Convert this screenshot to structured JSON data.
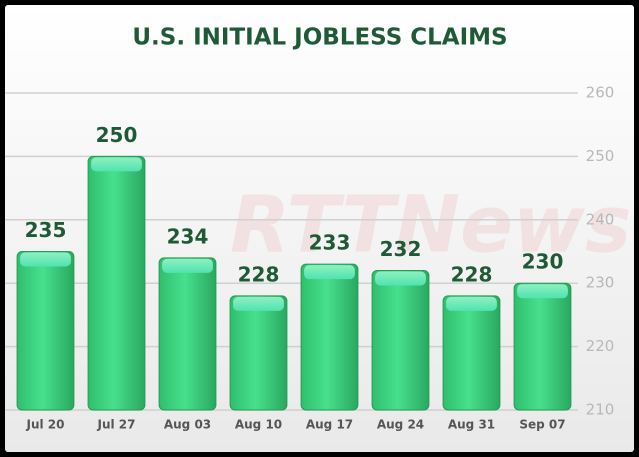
{
  "chart_data": {
    "type": "bar",
    "title": "U.S. INITIAL JOBLESS CLAIMS",
    "watermark": "RTTNews",
    "categories": [
      "Jul 20",
      "Jul 27",
      "Aug 03",
      "Aug 10",
      "Aug 17",
      "Aug 24",
      "Aug 31",
      "Sep 07"
    ],
    "values": [
      235,
      250,
      234,
      228,
      233,
      232,
      228,
      230
    ],
    "color": "#3ddc84",
    "ylim": [
      210,
      260
    ],
    "yticks": [
      210,
      220,
      230,
      240,
      250,
      260
    ],
    "grid": true,
    "y_axis_side": "right"
  }
}
